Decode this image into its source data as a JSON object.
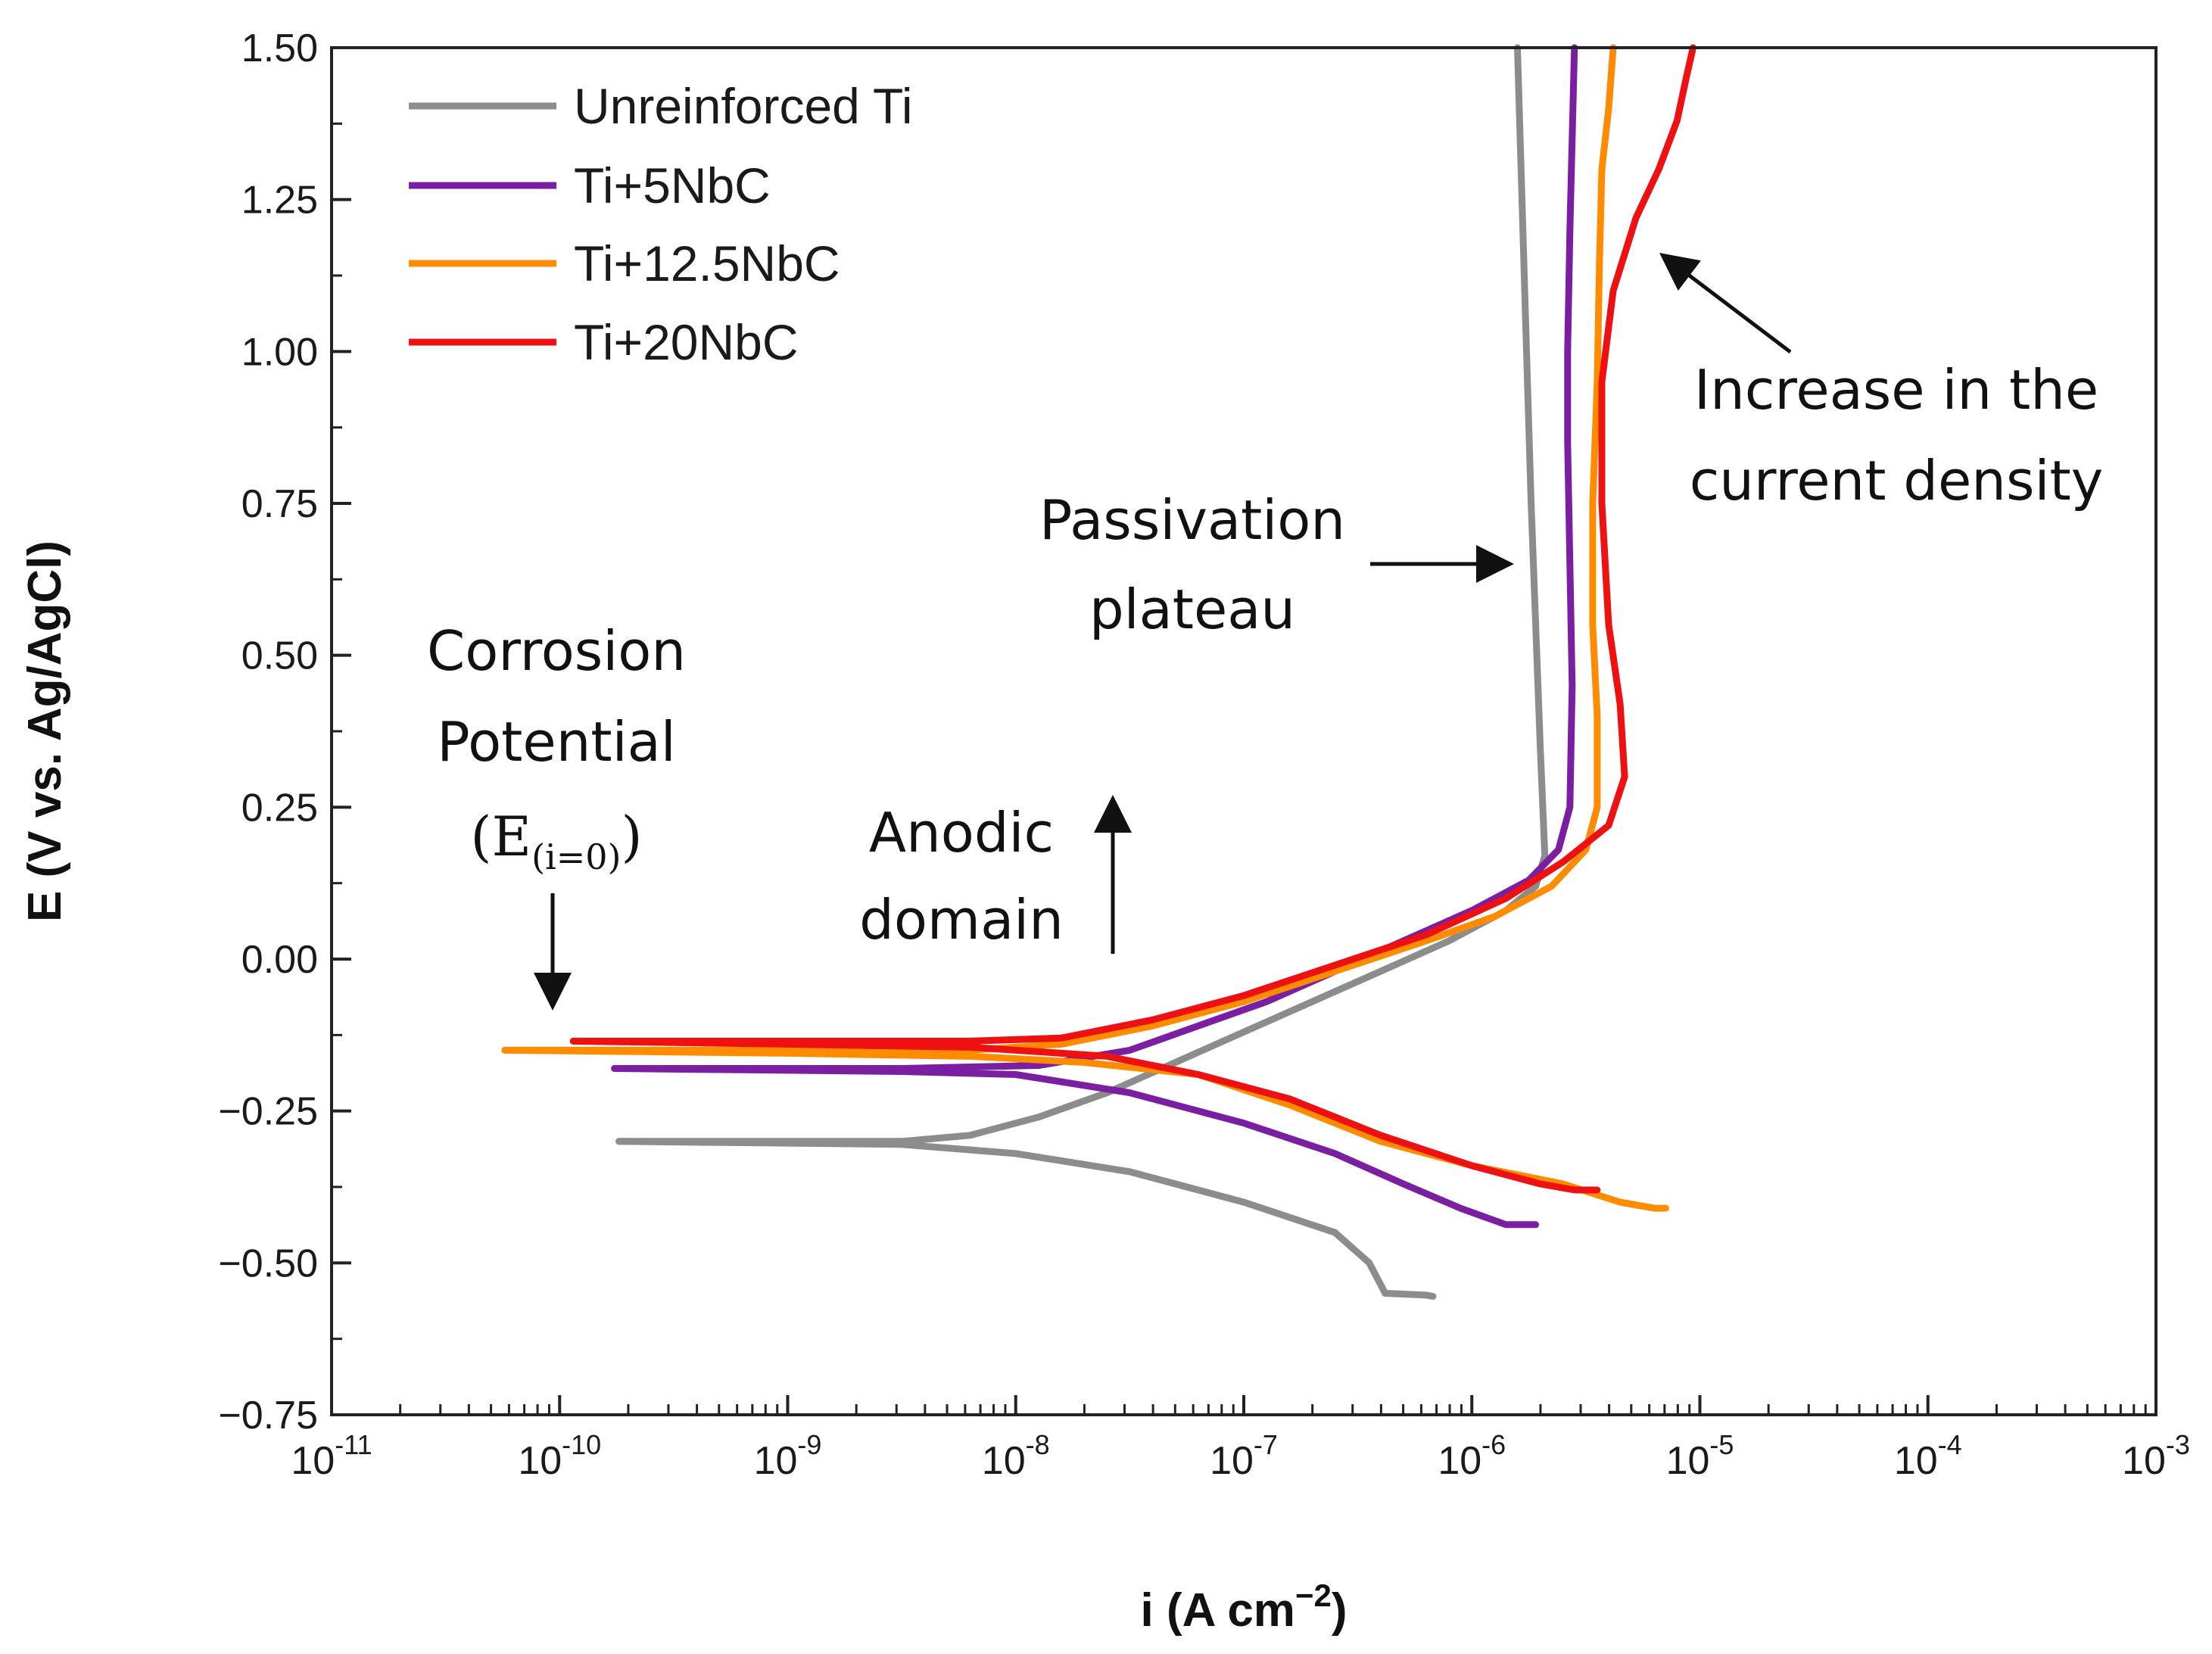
{
  "chart_data": {
    "type": "line",
    "title": "",
    "xlabel": "i (A cm",
    "xlabel_sup": "−2",
    "xlabel_close": ")",
    "ylabel": "E (V vs. Ag/AgCl)",
    "xscale": "log",
    "xlim_exp": [
      -11,
      -3
    ],
    "ylim": [
      -0.75,
      1.5
    ],
    "x_tick_base": "10",
    "x_tick_exps": [
      "-11",
      "-10",
      "-9",
      "-8",
      "-7",
      "-6",
      "-5",
      "-4",
      "-3"
    ],
    "y_ticks": [
      1.5,
      1.25,
      1.0,
      0.75,
      0.5,
      0.25,
      0.0,
      -0.25,
      -0.5,
      -0.75
    ],
    "y_tick_labels": [
      "1.50",
      "1.25",
      "1.00",
      "0.75",
      "0.50",
      "0.25",
      "0.00",
      "−0.25",
      "−0.50",
      "−0.75"
    ],
    "grid": false,
    "legend_position": "top-left",
    "series": [
      {
        "name": "Unreinforced Ti",
        "color": "#8c8c8c",
        "anodic": [
          [
            -9.74,
            -0.3
          ],
          [
            -8.5,
            -0.3
          ],
          [
            -8.2,
            -0.29
          ],
          [
            -7.9,
            -0.26
          ],
          [
            -7.6,
            -0.22
          ],
          [
            -7.3,
            -0.17
          ],
          [
            -7.0,
            -0.12
          ],
          [
            -6.7,
            -0.07
          ],
          [
            -6.4,
            -0.02
          ],
          [
            -6.1,
            0.03
          ],
          [
            -5.85,
            0.08
          ],
          [
            -5.72,
            0.12
          ],
          [
            -5.68,
            0.17
          ],
          [
            -5.7,
            0.35
          ],
          [
            -5.72,
            0.55
          ],
          [
            -5.74,
            0.75
          ],
          [
            -5.76,
            1.0
          ],
          [
            -5.78,
            1.25
          ],
          [
            -5.8,
            1.5
          ]
        ],
        "cathodic": [
          [
            -9.74,
            -0.3
          ],
          [
            -8.5,
            -0.305
          ],
          [
            -8.0,
            -0.32
          ],
          [
            -7.5,
            -0.35
          ],
          [
            -7.0,
            -0.4
          ],
          [
            -6.6,
            -0.45
          ],
          [
            -6.45,
            -0.5
          ],
          [
            -6.38,
            -0.55
          ],
          [
            -6.2,
            -0.553
          ],
          [
            -6.17,
            -0.555
          ]
        ]
      },
      {
        "name": "Ti+5NbC",
        "color": "#7b1fa2",
        "anodic": [
          [
            -9.76,
            -0.18
          ],
          [
            -8.5,
            -0.18
          ],
          [
            -7.9,
            -0.175
          ],
          [
            -7.5,
            -0.15
          ],
          [
            -7.2,
            -0.11
          ],
          [
            -6.9,
            -0.07
          ],
          [
            -6.6,
            -0.02
          ],
          [
            -6.3,
            0.03
          ],
          [
            -6.0,
            0.08
          ],
          [
            -5.75,
            0.13
          ],
          [
            -5.62,
            0.18
          ],
          [
            -5.57,
            0.25
          ],
          [
            -5.56,
            0.45
          ],
          [
            -5.57,
            0.65
          ],
          [
            -5.58,
            0.85
          ],
          [
            -5.58,
            1.0
          ],
          [
            -5.57,
            1.2
          ],
          [
            -5.56,
            1.35
          ],
          [
            -5.55,
            1.5
          ]
        ],
        "cathodic": [
          [
            -9.76,
            -0.18
          ],
          [
            -8.5,
            -0.185
          ],
          [
            -8.0,
            -0.19
          ],
          [
            -7.5,
            -0.22
          ],
          [
            -7.0,
            -0.27
          ],
          [
            -6.6,
            -0.32
          ],
          [
            -6.3,
            -0.37
          ],
          [
            -6.05,
            -0.41
          ],
          [
            -5.85,
            -0.437
          ],
          [
            -5.72,
            -0.437
          ]
        ]
      },
      {
        "name": "Ti+12.5NbC",
        "color": "#ff8c00",
        "anodic": [
          [
            -10.24,
            -0.15
          ],
          [
            -9.0,
            -0.15
          ],
          [
            -8.2,
            -0.15
          ],
          [
            -7.8,
            -0.14
          ],
          [
            -7.4,
            -0.11
          ],
          [
            -7.0,
            -0.07
          ],
          [
            -6.6,
            -0.02
          ],
          [
            -6.2,
            0.03
          ],
          [
            -5.9,
            0.07
          ],
          [
            -5.65,
            0.12
          ],
          [
            -5.5,
            0.18
          ],
          [
            -5.45,
            0.25
          ],
          [
            -5.45,
            0.4
          ],
          [
            -5.47,
            0.55
          ],
          [
            -5.47,
            0.75
          ],
          [
            -5.45,
            0.95
          ],
          [
            -5.44,
            1.15
          ],
          [
            -5.43,
            1.3
          ],
          [
            -5.4,
            1.4
          ],
          [
            -5.38,
            1.5
          ]
        ],
        "cathodic": [
          [
            -10.24,
            -0.15
          ],
          [
            -9.0,
            -0.155
          ],
          [
            -8.2,
            -0.16
          ],
          [
            -7.7,
            -0.17
          ],
          [
            -7.2,
            -0.19
          ],
          [
            -6.8,
            -0.24
          ],
          [
            -6.4,
            -0.3
          ],
          [
            -6.0,
            -0.34
          ],
          [
            -5.6,
            -0.37
          ],
          [
            -5.35,
            -0.4
          ],
          [
            -5.2,
            -0.41
          ],
          [
            -5.15,
            -0.41
          ]
        ]
      },
      {
        "name": "Ti+20NbC",
        "color": "#ee1111",
        "anodic": [
          [
            -9.94,
            -0.135
          ],
          [
            -9.0,
            -0.135
          ],
          [
            -8.2,
            -0.135
          ],
          [
            -7.8,
            -0.13
          ],
          [
            -7.4,
            -0.1
          ],
          [
            -7.0,
            -0.06
          ],
          [
            -6.6,
            -0.01
          ],
          [
            -6.2,
            0.04
          ],
          [
            -5.85,
            0.1
          ],
          [
            -5.6,
            0.16
          ],
          [
            -5.4,
            0.22
          ],
          [
            -5.33,
            0.3
          ],
          [
            -5.35,
            0.42
          ],
          [
            -5.4,
            0.55
          ],
          [
            -5.43,
            0.75
          ],
          [
            -5.43,
            0.95
          ],
          [
            -5.38,
            1.1
          ],
          [
            -5.28,
            1.22
          ],
          [
            -5.18,
            1.3
          ],
          [
            -5.1,
            1.38
          ],
          [
            -5.06,
            1.45
          ],
          [
            -5.03,
            1.5
          ]
        ],
        "cathodic": [
          [
            -9.94,
            -0.135
          ],
          [
            -9.0,
            -0.14
          ],
          [
            -8.2,
            -0.145
          ],
          [
            -7.6,
            -0.16
          ],
          [
            -7.2,
            -0.19
          ],
          [
            -6.8,
            -0.23
          ],
          [
            -6.4,
            -0.29
          ],
          [
            -6.0,
            -0.34
          ],
          [
            -5.7,
            -0.37
          ],
          [
            -5.55,
            -0.38
          ],
          [
            -5.45,
            -0.38
          ]
        ]
      }
    ],
    "annotations": {
      "corrosion_line1": "Corrosion",
      "corrosion_line2": "Potential",
      "corrosion_symbol_E": "(E",
      "corrosion_symbol_sub": "(i=0)",
      "corrosion_symbol_close": ")",
      "anodic_line1": "Anodic",
      "anodic_line2": "domain",
      "passivation_line1": "Passivation",
      "passivation_line2": "plateau",
      "increase_line1": "Increase in the",
      "increase_line2": "current density"
    }
  }
}
